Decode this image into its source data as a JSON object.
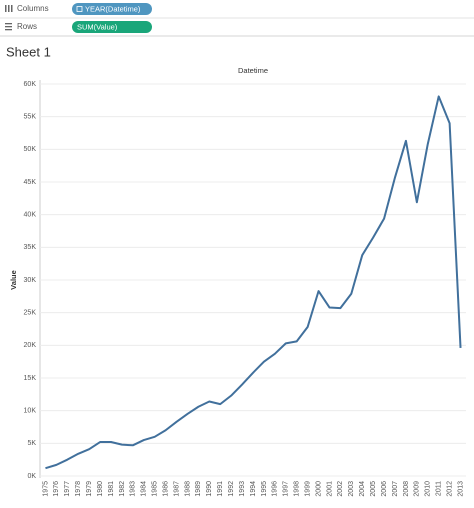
{
  "shelves": {
    "columns": {
      "label": "Columns",
      "pill": "YEAR(Datetime)"
    },
    "rows": {
      "label": "Rows",
      "pill": "SUM(Value)"
    }
  },
  "sheet_title": "Sheet 1",
  "chart_data": {
    "type": "line",
    "title": "Datetime",
    "y_label": "Value",
    "categories": [
      "1975",
      "1976",
      "1977",
      "1978",
      "1979",
      "1980",
      "1981",
      "1982",
      "1983",
      "1984",
      "1985",
      "1986",
      "1987",
      "1988",
      "1989",
      "1990",
      "1991",
      "1992",
      "1993",
      "1994",
      "1995",
      "1996",
      "1997",
      "1998",
      "1999",
      "2000",
      "2001",
      "2002",
      "2003",
      "2004",
      "2005",
      "2006",
      "2007",
      "2008",
      "2009",
      "2010",
      "2011",
      "2012",
      "2013"
    ],
    "series": [
      {
        "name": "Value",
        "color": "#41709c",
        "values": [
          1200,
          1700,
          2500,
          3400,
          4100,
          5200,
          5200,
          4800,
          4700,
          5500,
          6000,
          7000,
          8300,
          9500,
          10600,
          11400,
          11000,
          12300,
          14000,
          15800,
          17500,
          18700,
          20300,
          20600,
          22800,
          28300,
          25800,
          25700,
          27900,
          33800,
          36500,
          39400,
          45700,
          51300,
          41900,
          50800,
          58100,
          54000,
          19600
        ]
      }
    ],
    "ylim": [
      0,
      60000
    ],
    "yticks": [
      {
        "value": 0,
        "label": "0K"
      },
      {
        "value": 5000,
        "label": "5K"
      },
      {
        "value": 10000,
        "label": "10K"
      },
      {
        "value": 15000,
        "label": "15K"
      },
      {
        "value": 20000,
        "label": "20K"
      },
      {
        "value": 25000,
        "label": "25K"
      },
      {
        "value": 30000,
        "label": "30K"
      },
      {
        "value": 35000,
        "label": "35K"
      },
      {
        "value": 40000,
        "label": "40K"
      },
      {
        "value": 45000,
        "label": "45K"
      },
      {
        "value": 50000,
        "label": "50K"
      },
      {
        "value": 55000,
        "label": "55K"
      },
      {
        "value": 60000,
        "label": "60K"
      }
    ],
    "grid": true
  }
}
